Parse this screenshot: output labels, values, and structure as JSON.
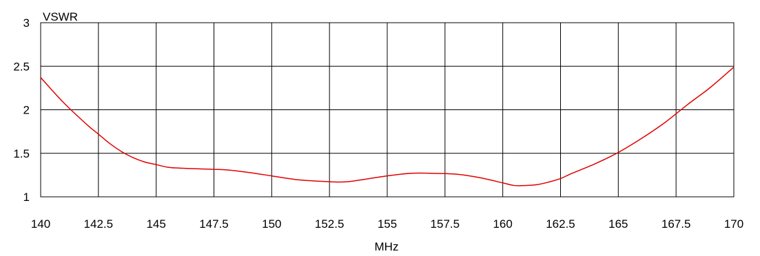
{
  "chart_data": {
    "type": "line",
    "title": "",
    "ylabel": "VSWR",
    "xlabel": "MHz",
    "xlim": [
      140,
      170
    ],
    "ylim": [
      1,
      3
    ],
    "x_ticks": [
      140,
      142.5,
      145,
      147.5,
      150,
      152.5,
      155,
      157.5,
      160,
      162.5,
      165,
      167.5,
      170
    ],
    "x_tick_labels": [
      "140",
      "142.5",
      "145",
      "147.5",
      "150",
      "152.5",
      "155",
      "157.5",
      "160",
      "162.5",
      "165",
      "167.5",
      "170"
    ],
    "y_ticks": [
      1,
      1.5,
      2,
      2.5,
      3
    ],
    "y_tick_labels": [
      "1",
      "1.5",
      "2",
      "2.5",
      "3"
    ],
    "grid": true,
    "legend": "none",
    "colors": {
      "line": "#e00000",
      "grid": "#000000",
      "text": "#000000",
      "background": "#ffffff"
    },
    "series": [
      {
        "x": [
          140,
          141,
          142,
          142.5,
          143,
          143.5,
          144,
          144.5,
          145,
          145.5,
          146,
          147,
          148,
          149,
          150,
          151,
          152,
          153,
          153.5,
          154,
          155,
          156,
          157,
          158,
          159,
          160,
          160.5,
          161,
          161.5,
          162,
          162.5,
          163,
          164,
          165,
          166,
          167,
          168,
          169,
          170
        ],
        "y": [
          2.37,
          2.08,
          1.83,
          1.72,
          1.61,
          1.52,
          1.45,
          1.4,
          1.37,
          1.34,
          1.33,
          1.32,
          1.31,
          1.28,
          1.24,
          1.2,
          1.18,
          1.17,
          1.18,
          1.2,
          1.24,
          1.27,
          1.27,
          1.26,
          1.22,
          1.16,
          1.13,
          1.13,
          1.14,
          1.17,
          1.21,
          1.27,
          1.38,
          1.51,
          1.67,
          1.85,
          2.06,
          2.26,
          2.49
        ]
      }
    ]
  }
}
